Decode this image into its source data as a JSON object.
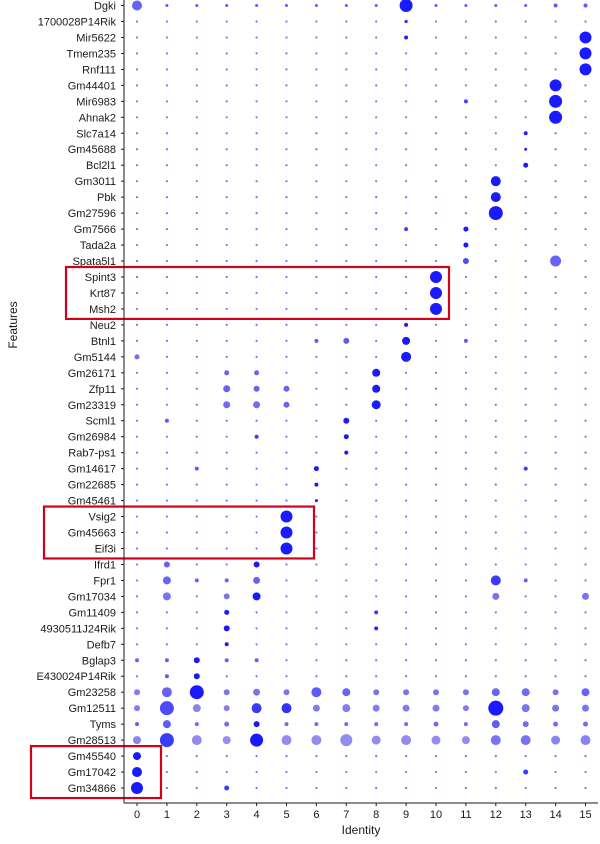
{
  "chart_data": {
    "type": "dotplot",
    "xlabel": "Identity",
    "ylabel": "Features",
    "x": [
      "0",
      "1",
      "2",
      "3",
      "4",
      "5",
      "6",
      "7",
      "8",
      "9",
      "10",
      "11",
      "12",
      "13",
      "14",
      "15"
    ],
    "genes": [
      "Dgki",
      "1700028P14Rik",
      "Mir5622",
      "Tmem235",
      "Rnf111",
      "Gm44401",
      "Mir6983",
      "Ahnak2",
      "Slc7a14",
      "Gm45688",
      "Bcl2l1",
      "Gm3011",
      "Pbk",
      "Gm27596",
      "Gm7566",
      "Tada2a",
      "Spata5l1",
      "Spint3",
      "Krt87",
      "Msh2",
      "Neu2",
      "Btnl1",
      "Gm5144",
      "Gm26171",
      "Zfp11",
      "Gm23319",
      "Scml1",
      "Gm26984",
      "Rab7-ps1",
      "Gm14617",
      "Gm22685",
      "Gm45461",
      "Vsig2",
      "Gm45663",
      "Eif3i",
      "Ifrd1",
      "Fpr1",
      "Gm17034",
      "Gm11409",
      "4930511J24Rik",
      "Defb7",
      "Bglap3",
      "E430024P14Rik",
      "Gm23258",
      "Gm12511",
      "Tyms",
      "Gm28513",
      "Gm45540",
      "Gm17042",
      "Gm34866"
    ],
    "highlights": [
      {
        "genes": [
          "Spint3",
          "Krt87",
          "Msh2"
        ],
        "cluster": "10"
      },
      {
        "genes": [
          "Vsig2",
          "Gm45663",
          "Eif3i"
        ],
        "cluster": "5"
      },
      {
        "genes": [
          "Gm45540",
          "Gm17042",
          "Gm34866"
        ],
        "cluster": "0"
      }
    ],
    "colors": {
      "high": "#1a1aff",
      "low": "#c7bde6",
      "highlight_box": "#d0021b"
    },
    "dots": [
      [
        "Dgki",
        "0",
        5,
        0.55
      ],
      [
        "Dgki",
        "1",
        1.5,
        0.6
      ],
      [
        "Dgki",
        "2",
        1.5,
        0.6
      ],
      [
        "Dgki",
        "3",
        1.5,
        0.6
      ],
      [
        "Dgki",
        "4",
        1.5,
        0.6
      ],
      [
        "Dgki",
        "5",
        1.5,
        0.6
      ],
      [
        "Dgki",
        "6",
        1.5,
        0.6
      ],
      [
        "Dgki",
        "7",
        1.5,
        0.6
      ],
      [
        "Dgki",
        "8",
        1.5,
        0.6
      ],
      [
        "Dgki",
        "9",
        6.5,
        1
      ],
      [
        "Dgki",
        "10",
        1.5,
        0.6
      ],
      [
        "Dgki",
        "11",
        1.5,
        0.6
      ],
      [
        "Dgki",
        "12",
        1.5,
        0.6
      ],
      [
        "Dgki",
        "13",
        1.5,
        0.6
      ],
      [
        "Dgki",
        "14",
        2,
        0.6
      ],
      [
        "Dgki",
        "15",
        2,
        0.6
      ],
      [
        "1700028P14Rik",
        "9",
        1.6,
        0.9
      ],
      [
        "Mir5622",
        "9",
        2,
        0.95
      ],
      [
        "Mir5622",
        "15",
        6,
        1
      ],
      [
        "Tmem235",
        "15",
        6,
        1
      ],
      [
        "Rnf111",
        "15",
        6,
        1
      ],
      [
        "Gm44401",
        "14",
        6,
        1
      ],
      [
        "Mir6983",
        "11",
        2,
        0.75
      ],
      [
        "Mir6983",
        "14",
        6.5,
        1
      ],
      [
        "Ahnak2",
        "14",
        6.5,
        1
      ],
      [
        "Slc7a14",
        "13",
        2,
        0.95
      ],
      [
        "Gm45688",
        "13",
        1.5,
        0.95
      ],
      [
        "Bcl2l1",
        "13",
        2.5,
        1
      ],
      [
        "Gm3011",
        "12",
        5,
        1
      ],
      [
        "Pbk",
        "12",
        5,
        1
      ],
      [
        "Gm27596",
        "12",
        7,
        1
      ],
      [
        "Gm7566",
        "9",
        2,
        0.75
      ],
      [
        "Gm7566",
        "11",
        2.5,
        1
      ],
      [
        "Tada2a",
        "11",
        2.5,
        1
      ],
      [
        "Spata5l1",
        "11",
        3,
        0.7
      ],
      [
        "Spata5l1",
        "14",
        5.5,
        0.55
      ],
      [
        "Spint3",
        "10",
        6,
        1
      ],
      [
        "Krt87",
        "10",
        6,
        1
      ],
      [
        "Msh2",
        "10",
        6,
        1
      ],
      [
        "Neu2",
        "9",
        2,
        1
      ],
      [
        "Btnl1",
        "6",
        2,
        0.6
      ],
      [
        "Btnl1",
        "7",
        3,
        0.6
      ],
      [
        "Btnl1",
        "9",
        4,
        1
      ],
      [
        "Btnl1",
        "11",
        2,
        0.6
      ],
      [
        "Gm5144",
        "0",
        2.5,
        0.5
      ],
      [
        "Gm5144",
        "9",
        5,
        1
      ],
      [
        "Gm26171",
        "3",
        2.5,
        0.55
      ],
      [
        "Gm26171",
        "4",
        2.5,
        0.55
      ],
      [
        "Gm26171",
        "8",
        4,
        1
      ],
      [
        "Zfp11",
        "3",
        3.5,
        0.55
      ],
      [
        "Zfp11",
        "4",
        3,
        0.55
      ],
      [
        "Zfp11",
        "5",
        3,
        0.55
      ],
      [
        "Zfp11",
        "8",
        4,
        1
      ],
      [
        "Gm23319",
        "3",
        3.5,
        0.5
      ],
      [
        "Gm23319",
        "4",
        3.5,
        0.5
      ],
      [
        "Gm23319",
        "5",
        3,
        0.55
      ],
      [
        "Gm23319",
        "8",
        4.5,
        1
      ],
      [
        "Scml1",
        "1",
        2,
        0.6
      ],
      [
        "Scml1",
        "7",
        3,
        1
      ],
      [
        "Gm26984",
        "4",
        2,
        0.8
      ],
      [
        "Gm26984",
        "7",
        2.5,
        1
      ],
      [
        "Rab7-ps1",
        "7",
        2,
        1
      ],
      [
        "Gm14617",
        "2",
        2,
        0.6
      ],
      [
        "Gm14617",
        "6",
        2.5,
        1
      ],
      [
        "Gm14617",
        "13",
        2,
        0.8
      ],
      [
        "Gm22685",
        "6",
        2,
        1
      ],
      [
        "Gm45461",
        "6",
        1.5,
        1
      ],
      [
        "Vsig2",
        "5",
        6,
        1
      ],
      [
        "Gm45663",
        "5",
        6,
        1
      ],
      [
        "Eif3i",
        "5",
        6,
        1
      ],
      [
        "Ifrd1",
        "1",
        3,
        0.55
      ],
      [
        "Ifrd1",
        "4",
        3,
        1
      ],
      [
        "Fpr1",
        "1",
        4,
        0.55
      ],
      [
        "Fpr1",
        "2",
        2,
        0.55
      ],
      [
        "Fpr1",
        "3",
        2,
        0.55
      ],
      [
        "Fpr1",
        "4",
        3.5,
        0.55
      ],
      [
        "Fpr1",
        "12",
        5,
        0.8
      ],
      [
        "Fpr1",
        "13",
        2,
        0.55
      ],
      [
        "Gm17034",
        "1",
        4,
        0.45
      ],
      [
        "Gm17034",
        "3",
        3,
        0.45
      ],
      [
        "Gm17034",
        "4",
        4,
        1
      ],
      [
        "Gm17034",
        "12",
        3.5,
        0.45
      ],
      [
        "Gm17034",
        "15",
        3.5,
        0.45
      ],
      [
        "Gm11409",
        "3",
        2.5,
        1
      ],
      [
        "Gm11409",
        "8",
        2,
        0.8
      ],
      [
        "4930511J24Rik",
        "3",
        3,
        1
      ],
      [
        "4930511J24Rik",
        "8",
        2,
        0.9
      ],
      [
        "Defb7",
        "3",
        2,
        1
      ],
      [
        "Bglap3",
        "0",
        2,
        0.55
      ],
      [
        "Bglap3",
        "1",
        2,
        0.55
      ],
      [
        "Bglap3",
        "2",
        3,
        1
      ],
      [
        "Bglap3",
        "3",
        2,
        0.55
      ],
      [
        "Bglap3",
        "4",
        2,
        0.55
      ],
      [
        "E430024P14Rik",
        "1",
        2,
        0.6
      ],
      [
        "E430024P14Rik",
        "2",
        3,
        1
      ],
      [
        "Gm23258",
        "0",
        3,
        0.4
      ],
      [
        "Gm23258",
        "1",
        5,
        0.55
      ],
      [
        "Gm23258",
        "2",
        7,
        1
      ],
      [
        "Gm23258",
        "3",
        3,
        0.45
      ],
      [
        "Gm23258",
        "4",
        3.5,
        0.45
      ],
      [
        "Gm23258",
        "5",
        3,
        0.45
      ],
      [
        "Gm23258",
        "6",
        5,
        0.6
      ],
      [
        "Gm23258",
        "7",
        4,
        0.55
      ],
      [
        "Gm23258",
        "8",
        3,
        0.45
      ],
      [
        "Gm23258",
        "9",
        3,
        0.45
      ],
      [
        "Gm23258",
        "10",
        3,
        0.45
      ],
      [
        "Gm23258",
        "11",
        3,
        0.45
      ],
      [
        "Gm23258",
        "12",
        4,
        0.55
      ],
      [
        "Gm23258",
        "13",
        4,
        0.5
      ],
      [
        "Gm23258",
        "14",
        3,
        0.45
      ],
      [
        "Gm23258",
        "15",
        4,
        0.55
      ],
      [
        "Gm12511",
        "0",
        3,
        0.4
      ],
      [
        "Gm12511",
        "1",
        7,
        0.7
      ],
      [
        "Gm12511",
        "2",
        4,
        0.35
      ],
      [
        "Gm12511",
        "3",
        3,
        0.4
      ],
      [
        "Gm12511",
        "4",
        5,
        0.8
      ],
      [
        "Gm12511",
        "5",
        5,
        0.85
      ],
      [
        "Gm12511",
        "6",
        3.5,
        0.4
      ],
      [
        "Gm12511",
        "7",
        4,
        0.4
      ],
      [
        "Gm12511",
        "8",
        3.5,
        0.4
      ],
      [
        "Gm12511",
        "9",
        3.5,
        0.4
      ],
      [
        "Gm12511",
        "10",
        3.5,
        0.4
      ],
      [
        "Gm12511",
        "11",
        3,
        0.4
      ],
      [
        "Gm12511",
        "12",
        7.5,
        1
      ],
      [
        "Gm12511",
        "13",
        4,
        0.45
      ],
      [
        "Gm12511",
        "14",
        3.5,
        0.45
      ],
      [
        "Gm12511",
        "15",
        3.5,
        0.45
      ],
      [
        "Tyms",
        "0",
        2,
        0.6
      ],
      [
        "Tyms",
        "1",
        4,
        0.6
      ],
      [
        "Tyms",
        "2",
        2,
        0.5
      ],
      [
        "Tyms",
        "3",
        2.5,
        0.5
      ],
      [
        "Tyms",
        "4",
        3,
        1
      ],
      [
        "Tyms",
        "5",
        2,
        0.5
      ],
      [
        "Tyms",
        "6",
        2,
        0.5
      ],
      [
        "Tyms",
        "7",
        2,
        0.5
      ],
      [
        "Tyms",
        "8",
        2,
        0.5
      ],
      [
        "Tyms",
        "9",
        2,
        0.5
      ],
      [
        "Tyms",
        "10",
        2.5,
        0.5
      ],
      [
        "Tyms",
        "11",
        2,
        0.5
      ],
      [
        "Tyms",
        "12",
        4,
        0.6
      ],
      [
        "Tyms",
        "13",
        3,
        0.5
      ],
      [
        "Tyms",
        "14",
        2.5,
        0.5
      ],
      [
        "Tyms",
        "15",
        2.5,
        0.5
      ],
      [
        "Gm28513",
        "0",
        4,
        0.35
      ],
      [
        "Gm28513",
        "1",
        7,
        0.8
      ],
      [
        "Gm28513",
        "2",
        5,
        0.3
      ],
      [
        "Gm28513",
        "3",
        4,
        0.3
      ],
      [
        "Gm28513",
        "4",
        6.5,
        1
      ],
      [
        "Gm28513",
        "5",
        5,
        0.3
      ],
      [
        "Gm28513",
        "6",
        5,
        0.3
      ],
      [
        "Gm28513",
        "7",
        6,
        0.3
      ],
      [
        "Gm28513",
        "8",
        4.5,
        0.3
      ],
      [
        "Gm28513",
        "9",
        5,
        0.3
      ],
      [
        "Gm28513",
        "10",
        4.5,
        0.3
      ],
      [
        "Gm28513",
        "11",
        4,
        0.3
      ],
      [
        "Gm28513",
        "12",
        5,
        0.45
      ],
      [
        "Gm28513",
        "13",
        5,
        0.45
      ],
      [
        "Gm28513",
        "14",
        4.5,
        0.35
      ],
      [
        "Gm28513",
        "15",
        5,
        0.35
      ],
      [
        "Gm45540",
        "0",
        4,
        1
      ],
      [
        "Gm17042",
        "0",
        5,
        1
      ],
      [
        "Gm17042",
        "13",
        2.5,
        0.8
      ],
      [
        "Gm34866",
        "0",
        6,
        1
      ],
      [
        "Gm34866",
        "3",
        2.5,
        0.8
      ]
    ]
  }
}
